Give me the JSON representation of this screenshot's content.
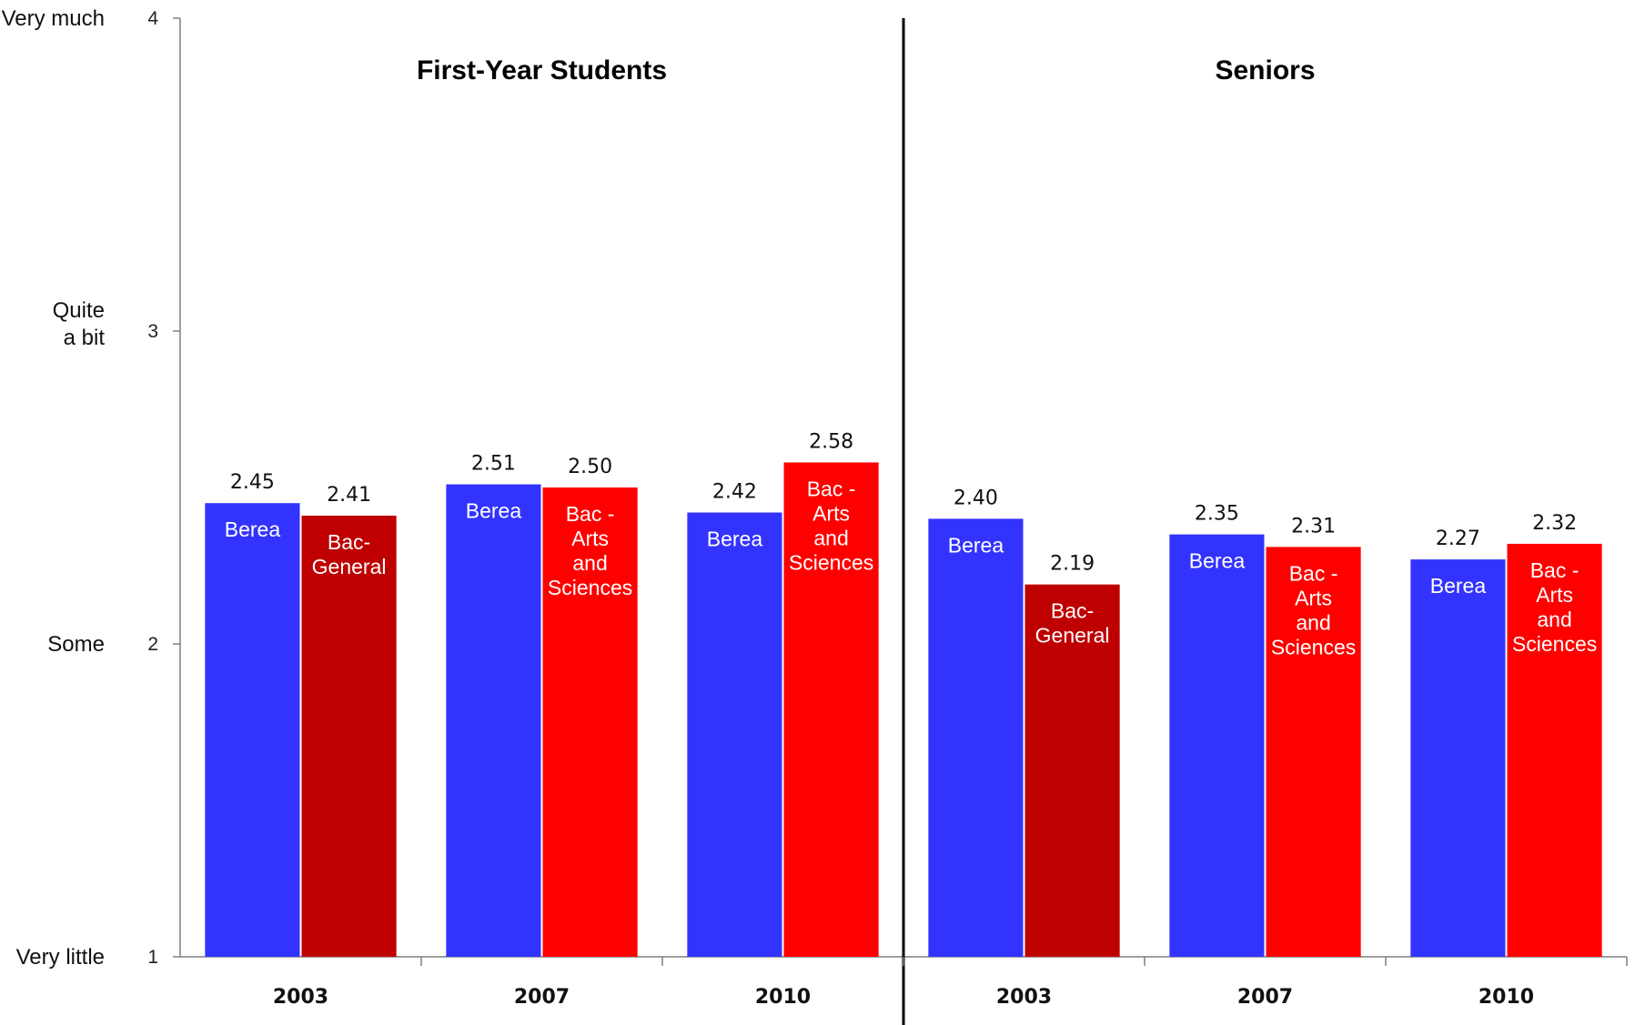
{
  "chart_data": {
    "type": "bar",
    "ylim": [
      1,
      4
    ],
    "y_ticks": [
      1,
      2,
      3,
      4
    ],
    "y_scale_labels": [
      {
        "value": 4,
        "lines": [
          "Very much"
        ]
      },
      {
        "value": 3,
        "lines": [
          "Quite",
          "a bit"
        ]
      },
      {
        "value": 2,
        "lines": [
          "Some"
        ]
      },
      {
        "value": 1,
        "lines": [
          "Very little"
        ]
      }
    ],
    "colors": {
      "Berea": "#3333ff",
      "Bac-General": "#bf0000",
      "Bac-Arts and Sciences": "#ff0000"
    },
    "panels": [
      {
        "title": "First-Year Students",
        "groups": [
          {
            "category": "2003",
            "bars": [
              {
                "series": "Berea",
                "value": 2.45,
                "value_label": "2.45",
                "label_lines": [
                  "Berea"
                ]
              },
              {
                "series": "Bac-General",
                "value": 2.41,
                "value_label": "2.41",
                "label_lines": [
                  "Bac-",
                  "General"
                ]
              }
            ]
          },
          {
            "category": "2007",
            "bars": [
              {
                "series": "Berea",
                "value": 2.51,
                "value_label": "2.51",
                "label_lines": [
                  "Berea"
                ]
              },
              {
                "series": "Bac-Arts and Sciences",
                "value": 2.5,
                "value_label": "2.50",
                "label_lines": [
                  "Bac -",
                  "Arts",
                  "and",
                  "Sciences"
                ]
              }
            ]
          },
          {
            "category": "2010",
            "bars": [
              {
                "series": "Berea",
                "value": 2.42,
                "value_label": "2.42",
                "label_lines": [
                  "Berea"
                ]
              },
              {
                "series": "Bac-Arts and Sciences",
                "value": 2.58,
                "value_label": "2.58",
                "label_lines": [
                  "Bac -",
                  "Arts",
                  "and",
                  "Sciences"
                ]
              }
            ]
          }
        ]
      },
      {
        "title": "Seniors",
        "groups": [
          {
            "category": "2003",
            "bars": [
              {
                "series": "Berea",
                "value": 2.4,
                "value_label": "2.40",
                "label_lines": [
                  "Berea"
                ]
              },
              {
                "series": "Bac-General",
                "value": 2.19,
                "value_label": "2.19",
                "label_lines": [
                  "Bac-",
                  "General"
                ]
              }
            ]
          },
          {
            "category": "2007",
            "bars": [
              {
                "series": "Berea",
                "value": 2.35,
                "value_label": "2.35",
                "label_lines": [
                  "Berea"
                ]
              },
              {
                "series": "Bac-Arts and Sciences",
                "value": 2.31,
                "value_label": "2.31",
                "label_lines": [
                  "Bac -",
                  "Arts",
                  "and",
                  "Sciences"
                ]
              }
            ]
          },
          {
            "category": "2010",
            "bars": [
              {
                "series": "Berea",
                "value": 2.27,
                "value_label": "2.27",
                "label_lines": [
                  "Berea"
                ]
              },
              {
                "series": "Bac-Arts and Sciences",
                "value": 2.32,
                "value_label": "2.32",
                "label_lines": [
                  "Bac -",
                  "Arts",
                  "and",
                  "Sciences"
                ]
              }
            ]
          }
        ]
      }
    ]
  }
}
